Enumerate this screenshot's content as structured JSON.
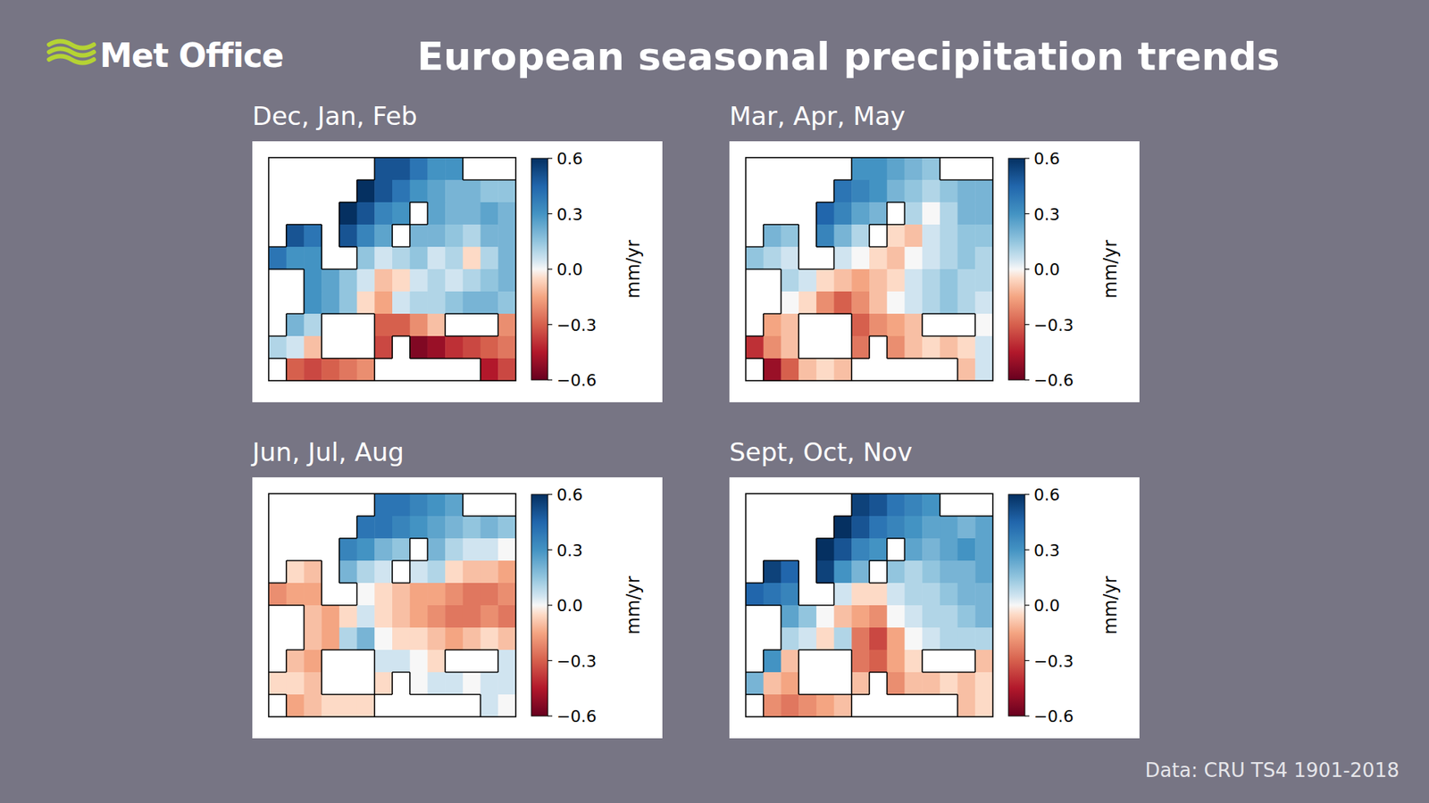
{
  "header": {
    "logo": "Met Office",
    "title": "European seasonal precipitation trends"
  },
  "chart_data": [
    {
      "type": "heatmap",
      "title": "Dec, Jan, Feb",
      "tick_labels": false,
      "colorbar": {
        "range": [
          -0.6,
          0.6
        ],
        "ticks": [
          0.6,
          0.3,
          {
            "value": 0,
            "label": "0.0"
          },
          {
            "value": -0.3,
            "label": "−0.3"
          },
          {
            "value": -0.6,
            "label": "−0.6"
          }
        ],
        "label": "mm/yr"
      },
      "cells": [
        [
          null,
          null,
          null,
          null,
          null,
          null,
          0.5,
          0.5,
          0.4,
          0.3,
          0.3,
          null,
          null,
          null
        ],
        [
          null,
          null,
          null,
          null,
          null,
          0.6,
          0.5,
          0.4,
          0.3,
          0.25,
          0.2,
          0.2,
          0.15,
          0.15
        ],
        [
          null,
          null,
          null,
          null,
          0.6,
          0.5,
          0.35,
          0.3,
          null,
          0.25,
          0.2,
          0.2,
          0.25,
          0.2
        ],
        [
          null,
          0.5,
          0.4,
          null,
          0.5,
          0.35,
          0.25,
          null,
          0.2,
          0.2,
          0.15,
          0.1,
          0.2,
          0.2
        ],
        [
          0.4,
          0.3,
          0.3,
          null,
          null,
          0.15,
          0.05,
          0.1,
          0.15,
          0.05,
          0.1,
          -0.05,
          0.1,
          0.2
        ],
        [
          null,
          null,
          0.3,
          0.25,
          0.15,
          0.05,
          -0.1,
          -0.05,
          0.05,
          0.1,
          0.05,
          0.1,
          0.15,
          0.2
        ],
        [
          null,
          null,
          0.3,
          0.25,
          0.15,
          -0.05,
          -0.15,
          0.05,
          0.1,
          0.1,
          0.15,
          0.2,
          0.2,
          0.15
        ],
        [
          null,
          0.2,
          0.1,
          null,
          null,
          null,
          -0.3,
          -0.3,
          -0.2,
          -0.1,
          null,
          null,
          null,
          -0.2
        ],
        [
          0.1,
          0.05,
          -0.1,
          null,
          null,
          null,
          -0.35,
          null,
          -0.55,
          -0.5,
          -0.4,
          -0.35,
          -0.3,
          -0.25
        ],
        [
          null,
          -0.3,
          -0.35,
          -0.3,
          -0.25,
          -0.2,
          null,
          null,
          null,
          null,
          null,
          null,
          -0.45,
          -0.35
        ]
      ]
    },
    {
      "type": "heatmap",
      "title": "Mar, Apr, May",
      "tick_labels": false,
      "colorbar": {
        "range": [
          -0.6,
          0.6
        ],
        "ticks": [
          0.6,
          0.3,
          {
            "value": 0,
            "label": "0.0"
          },
          {
            "value": -0.3,
            "label": "−0.3"
          },
          {
            "value": -0.6,
            "label": "−0.6"
          }
        ],
        "label": "mm/yr"
      },
      "cells": [
        [
          null,
          null,
          null,
          null,
          null,
          null,
          0.3,
          0.3,
          0.25,
          0.2,
          0.15,
          null,
          null,
          null
        ],
        [
          null,
          null,
          null,
          null,
          null,
          0.4,
          0.35,
          0.3,
          0.2,
          0.15,
          0.1,
          0.15,
          0.2,
          0.2
        ],
        [
          null,
          null,
          null,
          null,
          0.45,
          0.35,
          0.25,
          0.2,
          null,
          0.1,
          0,
          0.1,
          0.2,
          0.2
        ],
        [
          null,
          0.2,
          0.15,
          null,
          0.35,
          0.2,
          0.1,
          null,
          -0.05,
          -0.1,
          0.05,
          0.1,
          0.15,
          0.15
        ],
        [
          0.15,
          0.1,
          0.05,
          null,
          null,
          0.05,
          0,
          -0.05,
          -0.1,
          0,
          0.05,
          0.1,
          0.15,
          0.1
        ],
        [
          null,
          null,
          0.1,
          0.05,
          -0.05,
          -0.1,
          -0.15,
          -0.1,
          -0.05,
          0.05,
          0.1,
          0.15,
          0.1,
          0.1
        ],
        [
          null,
          null,
          0,
          -0.05,
          -0.2,
          -0.3,
          -0.2,
          -0.1,
          0,
          0.05,
          0.1,
          0.15,
          0.1,
          0.05
        ],
        [
          null,
          -0.15,
          -0.1,
          null,
          null,
          null,
          -0.3,
          -0.2,
          -0.15,
          -0.1,
          null,
          null,
          null,
          0
        ],
        [
          -0.4,
          -0.2,
          -0.1,
          null,
          null,
          null,
          -0.25,
          null,
          -0.2,
          -0.1,
          -0.05,
          -0.1,
          -0.05,
          0.05
        ],
        [
          null,
          -0.5,
          -0.3,
          -0.1,
          -0.05,
          -0.1,
          null,
          null,
          null,
          null,
          null,
          null,
          -0.1,
          0.05
        ]
      ]
    },
    {
      "type": "heatmap",
      "title": "Jun, Jul, Aug",
      "tick_labels": false,
      "colorbar": {
        "range": [
          -0.6,
          0.6
        ],
        "ticks": [
          0.6,
          0.3,
          {
            "value": 0,
            "label": "0.0"
          },
          {
            "value": -0.3,
            "label": "−0.3"
          },
          {
            "value": -0.6,
            "label": "−0.6"
          }
        ],
        "label": "mm/yr"
      },
      "cells": [
        [
          null,
          null,
          null,
          null,
          null,
          null,
          0.4,
          0.4,
          0.35,
          0.3,
          0.25,
          null,
          null,
          null
        ],
        [
          null,
          null,
          null,
          null,
          null,
          0.4,
          0.4,
          0.35,
          0.3,
          0.25,
          0.2,
          0.15,
          0.2,
          0.15
        ],
        [
          null,
          null,
          null,
          null,
          0.35,
          0.3,
          0.2,
          0.15,
          null,
          0.2,
          0.1,
          0.05,
          0.05,
          0
        ],
        [
          null,
          -0.05,
          -0.1,
          null,
          0.2,
          0.1,
          0.05,
          null,
          0.05,
          0.1,
          -0.05,
          -0.1,
          -0.1,
          -0.15
        ],
        [
          -0.2,
          -0.15,
          -0.15,
          null,
          null,
          0,
          -0.05,
          -0.1,
          -0.15,
          -0.15,
          -0.2,
          -0.25,
          -0.25,
          -0.2
        ],
        [
          null,
          null,
          -0.1,
          -0.15,
          -0.05,
          0.05,
          -0.05,
          -0.1,
          -0.15,
          -0.2,
          -0.25,
          -0.25,
          -0.2,
          -0.25
        ],
        [
          null,
          null,
          -0.1,
          -0.15,
          0.1,
          0.2,
          0,
          -0.05,
          -0.05,
          -0.1,
          -0.15,
          -0.1,
          -0.05,
          -0.1
        ],
        [
          null,
          -0.1,
          -0.15,
          null,
          null,
          null,
          0.05,
          0.05,
          0,
          -0.05,
          null,
          null,
          null,
          0.05
        ],
        [
          -0.05,
          -0.05,
          -0.1,
          null,
          null,
          null,
          -0.05,
          null,
          0,
          0.05,
          0.05,
          0,
          0.05,
          0.05
        ],
        [
          null,
          -0.15,
          -0.1,
          -0.05,
          -0.05,
          -0.05,
          null,
          null,
          null,
          null,
          null,
          null,
          0.05,
          0
        ]
      ]
    },
    {
      "type": "heatmap",
      "title": "Sept, Oct, Nov",
      "tick_labels": false,
      "colorbar": {
        "range": [
          -0.6,
          0.6
        ],
        "ticks": [
          0.6,
          0.3,
          {
            "value": 0,
            "label": "0.0"
          },
          {
            "value": -0.3,
            "label": "−0.3"
          },
          {
            "value": -0.6,
            "label": "−0.6"
          }
        ],
        "label": "mm/yr"
      },
      "cells": [
        [
          null,
          null,
          null,
          null,
          null,
          null,
          0.55,
          0.5,
          0.4,
          0.35,
          0.3,
          null,
          null,
          null
        ],
        [
          null,
          null,
          null,
          null,
          null,
          0.6,
          0.5,
          0.4,
          0.35,
          0.3,
          0.25,
          0.25,
          0.2,
          0.25
        ],
        [
          null,
          null,
          null,
          null,
          0.6,
          0.5,
          0.35,
          0.3,
          null,
          0.25,
          0.2,
          0.25,
          0.3,
          0.25
        ],
        [
          null,
          0.55,
          0.45,
          null,
          0.55,
          0.3,
          0.2,
          null,
          0.15,
          0.1,
          0.15,
          0.2,
          0.2,
          0.25
        ],
        [
          0.45,
          0.4,
          0.35,
          null,
          null,
          0.05,
          -0.05,
          -0.05,
          0.05,
          0.1,
          0.1,
          0.15,
          0.2,
          0.2
        ],
        [
          null,
          null,
          0.25,
          0.15,
          0,
          -0.1,
          -0.15,
          -0.2,
          0,
          0.05,
          0.1,
          0.1,
          0.15,
          0.2
        ],
        [
          null,
          null,
          0.1,
          0.05,
          -0.05,
          0.1,
          -0.25,
          -0.35,
          -0.15,
          0,
          0.05,
          0.1,
          0.1,
          0.1
        ],
        [
          null,
          0.3,
          -0.1,
          null,
          null,
          null,
          -0.25,
          -0.3,
          -0.15,
          -0.05,
          null,
          null,
          null,
          -0.1
        ],
        [
          0.2,
          -0.1,
          -0.15,
          null,
          null,
          null,
          -0.1,
          null,
          -0.2,
          -0.1,
          -0.1,
          -0.05,
          -0.1,
          -0.05
        ],
        [
          null,
          -0.2,
          -0.25,
          -0.2,
          -0.15,
          -0.1,
          null,
          null,
          null,
          null,
          null,
          null,
          -0.1,
          -0.05
        ]
      ]
    }
  ],
  "footer": {
    "source": "Data: CRU TS4 1901-2018"
  }
}
